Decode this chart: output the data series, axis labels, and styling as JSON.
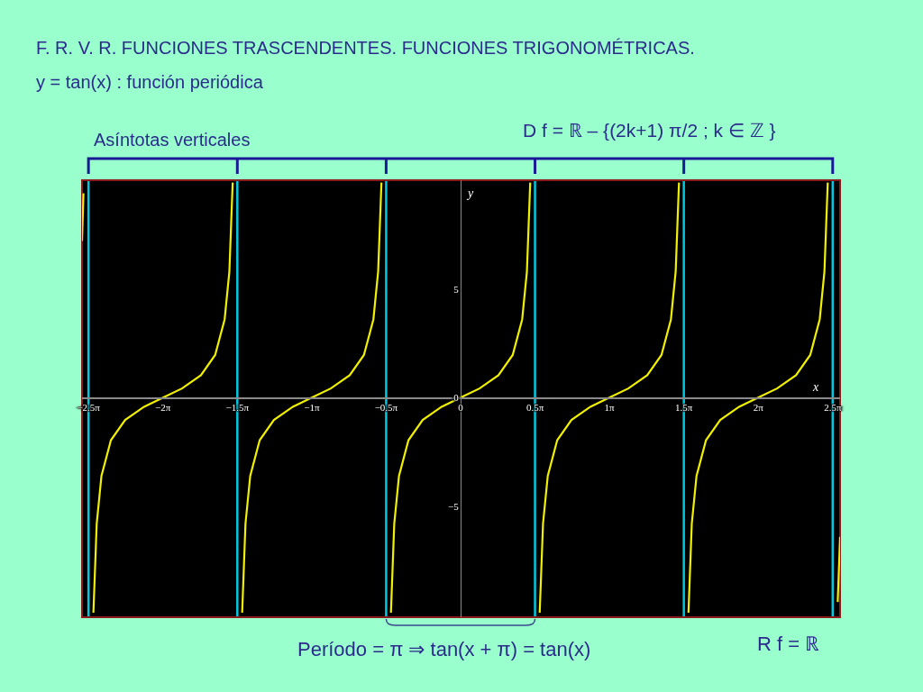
{
  "chart_data": {
    "type": "line",
    "title": "F. R. V. R. FUNCIONES TRASCENDENTES. FUNCIONES TRIGONOMÉTRICAS.",
    "subtitle": "y = tan(x) : función periódica",
    "xlabel": "x",
    "ylabel": "y",
    "annotations": [
      "Asíntotas verticales",
      "D f = ℝ – {(2k+1) π/2 ; k ∈ ℤ }",
      "Período = π ⇒ tan(x + π) = tan(x)",
      "R f = ℝ"
    ],
    "x": [
      -7.99,
      -7.96,
      null,
      -7.75,
      -7.68,
      -7.58,
      -7.38,
      -7.08,
      -6.68,
      -6.28,
      -5.88,
      -5.48,
      -5.18,
      -4.98,
      -4.88,
      -4.81,
      null,
      -4.61,
      -4.54,
      -4.44,
      -4.24,
      -3.94,
      -3.54,
      -3.14,
      -2.74,
      -2.34,
      -2.04,
      -1.84,
      -1.74,
      -1.67,
      null,
      -1.47,
      -1.4,
      -1.3,
      -1.1,
      -0.8,
      -0.4,
      0,
      0.4,
      0.8,
      1.1,
      1.3,
      1.4,
      1.47,
      null,
      1.67,
      1.74,
      1.84,
      2.04,
      2.34,
      2.74,
      3.14,
      3.54,
      3.94,
      4.24,
      4.44,
      4.54,
      4.61,
      null,
      4.81,
      4.88,
      4.98,
      5.18,
      5.48,
      5.88,
      6.28,
      6.68,
      7.08,
      7.38,
      7.58,
      7.68,
      7.75,
      null,
      7.96,
      8.01
    ],
    "series": [
      {
        "color": "#f0f000",
        "values": [
          7.2,
          9.4,
          null,
          -9.89,
          -5.8,
          -3.6,
          -1.96,
          -1.03,
          -0.42,
          0,
          0.42,
          1.03,
          1.96,
          3.6,
          5.8,
          9.89,
          null,
          -9.89,
          -5.8,
          -3.6,
          -1.96,
          -1.03,
          -0.42,
          0,
          0.42,
          1.03,
          1.96,
          3.6,
          5.8,
          9.89,
          null,
          -9.89,
          -5.8,
          -3.6,
          -1.96,
          -1.03,
          -0.42,
          0,
          0.42,
          1.03,
          1.96,
          3.6,
          5.8,
          9.89,
          null,
          -9.89,
          -5.8,
          -3.6,
          -1.96,
          -1.03,
          -0.42,
          0,
          0.42,
          1.03,
          1.96,
          3.6,
          5.8,
          9.89,
          null,
          -9.89,
          -5.8,
          -3.6,
          -1.96,
          -1.03,
          -0.42,
          0,
          0.42,
          1.03,
          1.96,
          3.6,
          5.8,
          9.89,
          null,
          -9.4,
          -6.4
        ]
      }
    ],
    "xlim": [
      -7.99,
      8.01
    ],
    "ylim": [
      -10.1,
      10.0
    ],
    "xticks": [
      {
        "value": -7.854,
        "label": "−2.5π"
      },
      {
        "value": -6.283,
        "label": "−2π"
      },
      {
        "value": -4.712,
        "label": "−1.5π"
      },
      {
        "value": -3.142,
        "label": "−1π"
      },
      {
        "value": -1.571,
        "label": "−0.5π"
      },
      0,
      {
        "value": 1.571,
        "label": "0.5π"
      },
      {
        "value": 3.142,
        "label": "1π"
      },
      {
        "value": 4.712,
        "label": "1.5π"
      },
      {
        "value": 6.283,
        "label": "2π"
      },
      {
        "value": 7.854,
        "label": "2.5π"
      }
    ],
    "yticks": [
      {
        "value": -5,
        "label": "−5"
      },
      0,
      5
    ],
    "ref_lines": [
      {
        "axis": "x",
        "value": -7.854,
        "color": "#00c8e0"
      },
      {
        "axis": "x",
        "value": -4.712,
        "color": "#00c8e0"
      },
      {
        "axis": "x",
        "value": -1.571,
        "color": "#00c8e0"
      },
      {
        "axis": "x",
        "value": 1.571,
        "color": "#00c8e0"
      },
      {
        "axis": "x",
        "value": 4.712,
        "color": "#00c8e0"
      },
      {
        "axis": "x",
        "value": 7.854,
        "color": "#00c8e0"
      }
    ],
    "marker": "none",
    "line_style": "solid"
  }
}
